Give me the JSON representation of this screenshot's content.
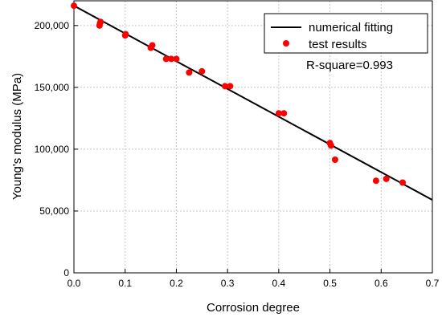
{
  "chart_data": {
    "type": "scatter",
    "xlabel": "Corrosion degree",
    "ylabel": "Young's modulus (MPa)",
    "xlim": [
      0,
      0.7
    ],
    "ylim": [
      0,
      220000
    ],
    "x_ticks": [
      0.0,
      0.1,
      0.2,
      0.3,
      0.4,
      0.5,
      0.6,
      0.7
    ],
    "x_tick_labels": [
      "0.0",
      "0.1",
      "0.2",
      "0.3",
      "0.4",
      "0.5",
      "0.6",
      "0.7"
    ],
    "y_ticks": [
      0,
      50000,
      100000,
      150000,
      200000
    ],
    "y_tick_labels": [
      "0",
      "50,000",
      "100,000",
      "150,000",
      "200,000"
    ],
    "grid": true,
    "legend_position": "top-right",
    "annotation": "R-square=0.993",
    "series": [
      {
        "name": "numerical fitting",
        "type": "line",
        "color": "#000000",
        "x": [
          0.0,
          0.7
        ],
        "y": [
          216000,
          59000
        ]
      },
      {
        "name": "test results",
        "type": "scatter",
        "color": "#ff0000",
        "x": [
          0.0,
          0.05,
          0.051,
          0.052,
          0.1,
          0.101,
          0.15,
          0.153,
          0.18,
          0.19,
          0.2,
          0.225,
          0.25,
          0.295,
          0.305,
          0.4,
          0.41,
          0.5,
          0.502,
          0.51,
          0.59,
          0.61,
          0.642
        ],
        "y": [
          216000,
          200000,
          202000,
          203000,
          192000,
          193000,
          182000,
          184000,
          173000,
          173000,
          173000,
          162000,
          163000,
          151000,
          151000,
          129000,
          129000,
          105000,
          103000,
          91500,
          74500,
          76000,
          73000
        ]
      }
    ]
  }
}
